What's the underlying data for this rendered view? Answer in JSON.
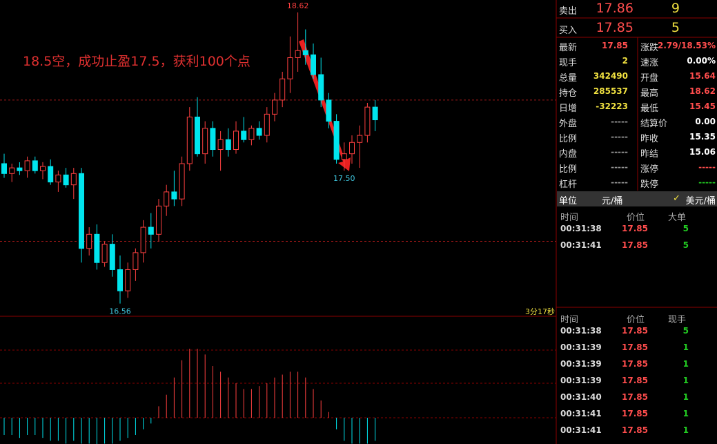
{
  "annotation": "18.5空，成功止盈17.5，获利100个点",
  "chart_data": {
    "type": "candlestick",
    "ylim": [
      16.47,
      18.708
    ],
    "ref_lines": [
      18,
      17
    ],
    "up_color": "#ff4040",
    "down_color": "#00e5ee",
    "candles": [
      [
        17.55,
        17.62,
        17.45,
        17.48
      ],
      [
        17.48,
        17.55,
        17.42,
        17.52
      ],
      [
        17.52,
        17.56,
        17.47,
        17.5
      ],
      [
        17.5,
        17.6,
        17.45,
        17.57
      ],
      [
        17.57,
        17.6,
        17.48,
        17.5
      ],
      [
        17.5,
        17.56,
        17.44,
        17.53
      ],
      [
        17.53,
        17.58,
        17.4,
        17.42
      ],
      [
        17.42,
        17.5,
        17.35,
        17.47
      ],
      [
        17.47,
        17.52,
        17.38,
        17.4
      ],
      [
        17.4,
        17.52,
        17.3,
        17.48
      ],
      [
        17.48,
        17.52,
        16.85,
        16.95
      ],
      [
        16.95,
        17.1,
        16.9,
        17.05
      ],
      [
        17.05,
        17.12,
        16.8,
        16.85
      ],
      [
        16.85,
        17,
        16.82,
        16.98
      ],
      [
        16.98,
        17.05,
        16.75,
        16.8
      ],
      [
        16.8,
        16.9,
        16.56,
        16.65
      ],
      [
        16.65,
        16.85,
        16.6,
        16.8
      ],
      [
        16.8,
        16.95,
        16.72,
        16.92
      ],
      [
        16.92,
        17.15,
        16.85,
        17.1
      ],
      [
        17.1,
        17.2,
        16.95,
        17.05
      ],
      [
        17.05,
        17.3,
        17,
        17.25
      ],
      [
        17.25,
        17.4,
        17.18,
        17.35
      ],
      [
        17.35,
        17.5,
        17.25,
        17.3
      ],
      [
        17.3,
        17.6,
        17.25,
        17.55
      ],
      [
        17.55,
        17.95,
        17.5,
        17.88
      ],
      [
        17.88,
        18.02,
        17.6,
        17.62
      ],
      [
        17.62,
        17.85,
        17.55,
        17.8
      ],
      [
        17.8,
        17.85,
        17.6,
        17.65
      ],
      [
        17.65,
        17.78,
        17.5,
        17.72
      ],
      [
        17.72,
        17.8,
        17.6,
        17.65
      ],
      [
        17.65,
        17.85,
        17.62,
        17.78
      ],
      [
        17.78,
        17.88,
        17.7,
        17.72
      ],
      [
        17.72,
        17.82,
        17.68,
        17.8
      ],
      [
        17.8,
        17.85,
        17.72,
        17.75
      ],
      [
        17.75,
        17.95,
        17.7,
        17.9
      ],
      [
        17.9,
        18.05,
        17.85,
        18
      ],
      [
        18,
        18.2,
        17.95,
        18.15
      ],
      [
        18.15,
        18.45,
        18.05,
        18.3
      ],
      [
        18.3,
        18.62,
        18.2,
        18.35
      ],
      [
        18.35,
        18.5,
        18.25,
        18.32
      ],
      [
        18.32,
        18.4,
        18.15,
        18.18
      ],
      [
        18.18,
        18.3,
        17.95,
        18
      ],
      [
        18,
        18.05,
        17.8,
        17.85
      ],
      [
        17.85,
        17.9,
        17.55,
        17.58
      ],
      [
        17.58,
        17.7,
        17.5,
        17.62
      ],
      [
        17.62,
        17.75,
        17.55,
        17.7
      ],
      [
        17.7,
        17.82,
        17.52,
        17.75
      ],
      [
        17.75,
        17.98,
        17.7,
        17.95
      ],
      [
        17.95,
        18,
        17.78,
        17.86
      ]
    ],
    "price_labels": [
      18.62,
      {
        "value": 17.5,
        "label": "17.50"
      },
      16.56
    ],
    "timer": "3分17秒",
    "macd_hist": [
      -0.03,
      -0.03,
      -0.035,
      -0.03,
      -0.03,
      -0.035,
      -0.04,
      -0.04,
      -0.045,
      -0.04,
      -0.045,
      -0.045,
      -0.05,
      -0.045,
      -0.045,
      -0.04,
      -0.035,
      -0.03,
      -0.02,
      -0.01,
      0.02,
      0.04,
      0.07,
      0.1,
      0.12,
      0.12,
      0.11,
      0.09,
      0.08,
      0.07,
      0.06,
      0.05,
      0.05,
      0.055,
      0.06,
      0.07,
      0.075,
      0.08,
      0.08,
      0.07,
      0.05,
      0.03,
      0.01,
      -0.02,
      -0.04,
      -0.045,
      -0.045,
      -0.045,
      -0.04
    ]
  },
  "order_book": [
    {
      "label": "卖出",
      "price": 17.86,
      "qty": 9
    },
    {
      "label": "买入",
      "price": 17.85,
      "qty": 5
    }
  ],
  "stats": [
    [
      {
        "label": "最新",
        "value": 17.85,
        "color": "#ff4d4d"
      },
      {
        "label": "涨跌",
        "value": "2.79/18.53%",
        "color": "#ff4d4d"
      }
    ],
    [
      {
        "label": "现手",
        "value": 2,
        "color": "#f0e040"
      },
      {
        "label": "速涨",
        "value": "0.00%",
        "color": "#ffffff"
      }
    ],
    [
      {
        "label": "总量",
        "value": 342490,
        "color": "#f0e040"
      },
      {
        "label": "开盘",
        "value": 15.64,
        "color": "#ff4d4d"
      }
    ],
    [
      {
        "label": "持仓",
        "value": 285537,
        "color": "#f0e040"
      },
      {
        "label": "最高",
        "value": 18.62,
        "color": "#ff4d4d"
      }
    ],
    [
      {
        "label": "日增",
        "value": -32223,
        "color": "#f0e040"
      },
      {
        "label": "最低",
        "value": 15.45,
        "color": "#ff4d4d"
      }
    ],
    [
      {
        "label": "外盘",
        "value": "-----",
        "color": "#999999"
      },
      {
        "label": "结算价",
        "value": "0.00",
        "color": "#ffffff"
      }
    ],
    [
      {
        "label": "比例",
        "value": "-----",
        "color": "#999999"
      },
      {
        "label": "昨收",
        "value": 15.35,
        "color": "#ffffff"
      }
    ],
    [
      {
        "label": "内盘",
        "value": "-----",
        "color": "#999999"
      },
      {
        "label": "昨结",
        "value": 15.06,
        "color": "#ffffff"
      }
    ],
    [
      {
        "label": "比例",
        "value": "-----",
        "color": "#999999"
      },
      {
        "label": "涨停",
        "value": "-----",
        "color": "#ff4d4d"
      }
    ],
    [
      {
        "label": "杠杆",
        "value": "-----",
        "color": "#999999"
      },
      {
        "label": "跌停",
        "value": "-----",
        "color": "#22cc22"
      }
    ]
  ],
  "unit": {
    "label": "单位",
    "option1": "元/桶",
    "option2": "美元/桶"
  },
  "big_trades": {
    "headers": [
      "时间",
      "价位",
      "大单"
    ],
    "rows": [
      [
        "00:31:38",
        17.85,
        5
      ],
      [
        "00:31:41",
        17.85,
        5
      ]
    ]
  },
  "ticks": {
    "headers": [
      "时间",
      "价位",
      "现手"
    ],
    "rows": [
      [
        "00:31:38",
        17.85,
        5
      ],
      [
        "00:31:39",
        17.85,
        1
      ],
      [
        "00:31:39",
        17.85,
        1
      ],
      [
        "00:31:39",
        17.85,
        1
      ],
      [
        "00:31:40",
        17.85,
        1
      ],
      [
        "00:31:41",
        17.85,
        1
      ],
      [
        "00:31:41",
        17.85,
        1
      ]
    ]
  }
}
